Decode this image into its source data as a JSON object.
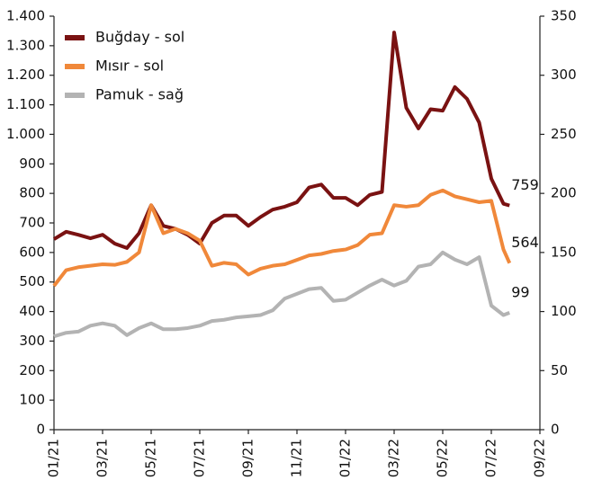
{
  "chart_data": {
    "type": "line",
    "x": [
      0,
      0.5,
      1,
      1.5,
      2,
      2.5,
      3,
      3.5,
      4,
      4.5,
      5,
      5.5,
      6,
      6.5,
      7,
      7.5,
      8,
      8.5,
      9,
      9.5,
      10,
      10.5,
      11,
      11.5,
      12,
      12.5,
      13,
      13.5,
      14,
      14.5,
      15,
      15.5,
      16,
      16.5,
      17,
      17.5,
      18,
      18.5,
      18.75
    ],
    "xlim": [
      0,
      20
    ],
    "xticks": [
      {
        "value": 0,
        "label": "01/21"
      },
      {
        "value": 2,
        "label": "03/21"
      },
      {
        "value": 4,
        "label": "05/21"
      },
      {
        "value": 6,
        "label": "07/21"
      },
      {
        "value": 8,
        "label": "09/21"
      },
      {
        "value": 10,
        "label": "11/21"
      },
      {
        "value": 12,
        "label": "01/22"
      },
      {
        "value": 14,
        "label": "03/22"
      },
      {
        "value": 16,
        "label": "05/22"
      },
      {
        "value": 18,
        "label": "07/22"
      },
      {
        "value": 20,
        "label": "09/22"
      }
    ],
    "ylim": [
      0,
      1400
    ],
    "yticks": [
      0,
      100,
      200,
      300,
      400,
      500,
      600,
      700,
      800,
      900,
      {
        "value": 1000,
        "label": "1.000"
      },
      {
        "value": 1100,
        "label": "1.100"
      },
      {
        "value": 1200,
        "label": "1.200"
      },
      {
        "value": 1300,
        "label": "1.300"
      },
      {
        "value": 1400,
        "label": "1.400"
      }
    ],
    "y2lim": [
      0,
      350
    ],
    "y2ticks": [
      0,
      50,
      100,
      150,
      200,
      250,
      300,
      350
    ],
    "legend": "upper left",
    "series": [
      {
        "name": "Buğday - sol",
        "color": "#7a1212",
        "values": [
          645,
          670,
          660,
          648,
          660,
          630,
          615,
          665,
          760,
          690,
          680,
          660,
          630,
          700,
          725,
          725,
          690,
          720,
          745,
          755,
          770,
          820,
          830,
          785,
          785,
          760,
          795,
          805,
          1345,
          1090,
          1020,
          1085,
          1080,
          1160,
          1120,
          1040,
          850,
          765,
          759
        ]
      },
      {
        "name": "Mısır - sol",
        "color": "#f0883a",
        "values": [
          487,
          540,
          550,
          555,
          560,
          558,
          568,
          600,
          760,
          665,
          680,
          665,
          640,
          555,
          565,
          560,
          525,
          545,
          555,
          560,
          575,
          590,
          595,
          605,
          610,
          625,
          660,
          665,
          760,
          755,
          760,
          795,
          810,
          790,
          780,
          770,
          775,
          610,
          564
        ]
      },
      {
        "name": "Pamuk - sağ",
        "color": "#b3b3b3",
        "axis": "y2",
        "values": [
          79,
          82,
          83,
          88,
          90,
          88,
          80,
          86,
          90,
          85,
          85,
          86,
          88,
          92,
          93,
          95,
          96,
          97,
          101,
          111,
          115,
          119,
          120,
          109,
          110,
          116,
          122,
          127,
          122,
          126,
          138,
          140,
          150,
          144,
          140,
          146,
          105,
          97,
          99
        ]
      }
    ]
  }
}
